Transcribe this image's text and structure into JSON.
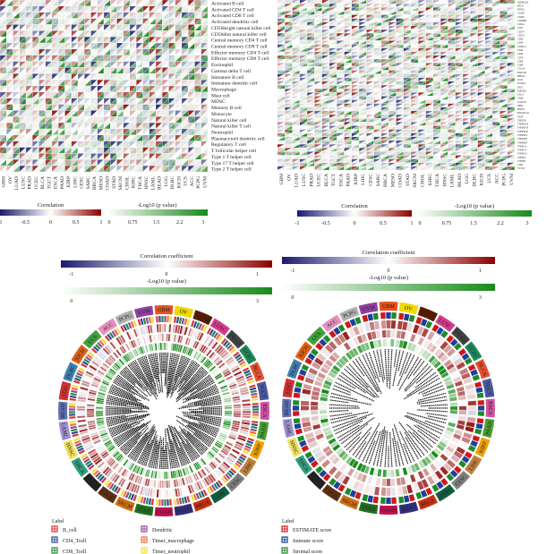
{
  "cancers": [
    "GBM",
    "OV",
    "LUAD",
    "LUSC",
    "PRAD",
    "UCEC",
    "BLCA",
    "TGCT",
    "ESCA",
    "PAAD",
    "KIRP",
    "LIHC",
    "CESC",
    "SARC",
    "BRCA",
    "MESO",
    "COAD",
    "STAD",
    "SKCM",
    "CHOL",
    "KIRC",
    "THCA",
    "HNSC",
    "LAML",
    "READ",
    "LGG",
    "DLBC",
    "KICH",
    "UCS",
    "ACC",
    "PCPG",
    "UVM"
  ],
  "cancer_colors": {
    "GBM": "#e8501c",
    "OV": "#f0d800",
    "LUAD": "#5a1a00",
    "LUSC": "#d63c8c",
    "PRAD": "#444444",
    "UCEC": "#1e8a5a",
    "BLCA": "#e85030",
    "TGCT": "#4a5aa0",
    "ESCA": "#d050a0",
    "PAAD": "#4aa030",
    "KIRP": "#f0a000",
    "LIHC": "#c08040",
    "CESC": "#808080",
    "SARC": "#106040",
    "BRCA": "#c83010",
    "MESO": "#303080",
    "COAD": "#c01050",
    "STAD": "#207020",
    "SKCM": "#d07010",
    "CHOL": "#603010",
    "KIRC": "#222222",
    "THCA": "#30a080",
    "HNSC": "#f0e060",
    "LAML": "#a090d0",
    "READ": "#6070b0",
    "LGG": "#d03030",
    "DLBC": "#4080b0",
    "KICH": "#e06010",
    "UCS": "#40a040",
    "ACC": "#e890c0",
    "PCPG": "#b0b0b0",
    "UVM": "#9040a0"
  },
  "colors": {
    "neg": "#1a1a6e",
    "zero": "#ffffff",
    "pos": "#8b0000",
    "p_low": "#ffffff",
    "p_high": "#1a8a1a"
  },
  "chart_data": [
    {
      "type": "heatmap",
      "x": "cancers",
      "rows": [
        "Activated B cell",
        "Activated CD4 T cell",
        "Activated CD8 T cell",
        "Activated dendritic cell",
        "CD56bright natural killer cell",
        "CD56dim natural killer cell",
        "Central memory CD4 T cell",
        "Central memory CD8 T cell",
        "Effector memory CD4 T cell",
        "Effector memory CD8 T cell",
        "Eosinophil",
        "Gamma delta T cell",
        "Immature B cell",
        "Immature dentritic cell",
        "Macrophage",
        "Mast cell",
        "MDSC",
        "Memory B cell",
        "Monocyte",
        "Natural killer cell",
        "Natural killer T cell",
        "Neutrophil",
        "Plasmacytoid dentritic cell",
        "Regulatory T cell",
        "T follicular helper cell",
        "Type 1 T helper cell",
        "Type 17 T helper cell",
        "Type 2 T helper cell"
      ],
      "legend_corr": {
        "title": "Correlation",
        "ticks": [
          "-1",
          "-0.5",
          "0",
          "0.5",
          "1"
        ],
        "range": [
          -1,
          1
        ]
      },
      "legend_p": {
        "title": "-Log10 (p value)",
        "ticks": [
          "0",
          "0.75",
          "1.5",
          "2.2",
          "3"
        ],
        "range": [
          0,
          3
        ]
      }
    },
    {
      "type": "heatmap",
      "x": "cancers",
      "rows": [
        "ADORA2A",
        "BTLA",
        "BTNL2",
        "CD160",
        "CD200",
        "CD200R1",
        "CD244",
        "CD27",
        "CD274",
        "CD276",
        "CD28",
        "CD40",
        "CD40LG",
        "CD44",
        "CD48",
        "CD70",
        "CD80",
        "CD86",
        "CTLA4",
        "HAVCR2",
        "HHLA2",
        "ICOS",
        "ICOSLG",
        "IDO1",
        "KIR3DL1",
        "LAG3",
        "LAIR1",
        "LGALS9",
        "NRP1",
        "PDCD1",
        "PDCD1LG2",
        "TIGIT",
        "TMIGD2",
        "TNFRSF14",
        "TNFRSF18",
        "TNFRSF25",
        "TNFRSF4",
        "TNFRSF8",
        "TNFRSF9",
        "TNFSF14",
        "TNFSF15",
        "TNFSF18",
        "TNFSF4",
        "TNFSF9",
        "VSIR",
        "VTCN1"
      ],
      "legend_corr": {
        "title": "Correlation",
        "ticks": [
          "-1",
          "-0.5",
          "0",
          "0.5",
          "1"
        ],
        "range": [
          -1,
          1
        ]
      },
      "legend_p": {
        "title": "-Log10 (p value)",
        "ticks": [
          "0",
          "0.75",
          "1.5",
          "2.2",
          "3"
        ],
        "range": [
          0,
          3
        ]
      }
    },
    {
      "type": "circular-heatmap",
      "legend_corr": {
        "title": "Correlation coefficient",
        "ticks": [
          "-1",
          "0",
          "1"
        ],
        "range": [
          -1,
          1
        ]
      },
      "legend_p": {
        "title": "-Log10 (p value)",
        "ticks": [
          "0",
          "3"
        ],
        "range": [
          0,
          3
        ]
      },
      "legend": {
        "title": "Label",
        "items": [
          {
            "name": "B_cell",
            "color": "#e03030"
          },
          {
            "name": "CD4_Tcell",
            "color": "#2a4a9a"
          },
          {
            "name": "CD8_Tcell",
            "color": "#2a8a3a"
          },
          {
            "name": "Dendritic",
            "color": "#8a4aa0"
          },
          {
            "name": "Timer_macrophage",
            "color": "#f07040"
          },
          {
            "name": "Timer_neutrophil",
            "color": "#f0e040"
          }
        ]
      }
    },
    {
      "type": "circular-heatmap",
      "legend_corr": {
        "title": "Correlation coefficient",
        "ticks": [
          "-1",
          "0",
          "1"
        ],
        "range": [
          -1,
          1
        ]
      },
      "legend_p": {
        "title": "-Log10 (p value)",
        "ticks": [
          "0",
          "3"
        ],
        "range": [
          0,
          3
        ]
      },
      "legend": {
        "title": "Label",
        "items": [
          {
            "name": "ESTIMATE score",
            "color": "#d01818"
          },
          {
            "name": "Immune score",
            "color": "#1e3f9a"
          },
          {
            "name": "Stromal score",
            "color": "#1e8a2a"
          }
        ]
      }
    }
  ]
}
